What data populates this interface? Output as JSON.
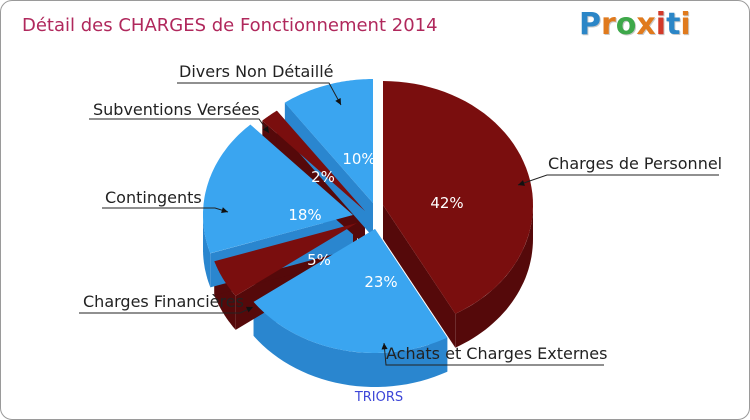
{
  "title": "Détail des CHARGES de Fonctionnement 2014",
  "logo": {
    "text": "Proxiti",
    "colors": [
      "#2b86c7",
      "#e07a1d",
      "#3ea84a",
      "#e07a1d",
      "#d23a2a",
      "#2b86c7",
      "#e07a1d"
    ]
  },
  "chart_data": {
    "type": "pie",
    "title": "Détail des CHARGES de Fonctionnement 2014",
    "source": "TRIORS",
    "slices": [
      {
        "name": "Charges de Personnel",
        "value": 42,
        "label": "42%",
        "color": "#7a0e0e"
      },
      {
        "name": "Achats et Charges Externes",
        "value": 23,
        "label": "23%",
        "color": "#3aa5f0"
      },
      {
        "name": "Charges Financières",
        "value": 5,
        "label": "5%",
        "color": "#7a0e0e"
      },
      {
        "name": "Contingents",
        "value": 18,
        "label": "18%",
        "color": "#3aa5f0"
      },
      {
        "name": "Subventions Versées",
        "value": 2,
        "label": "2%",
        "color": "#7a0e0e"
      },
      {
        "name": "Divers Non Détaillé",
        "value": 10,
        "label": "10%",
        "color": "#3aa5f0"
      }
    ]
  }
}
